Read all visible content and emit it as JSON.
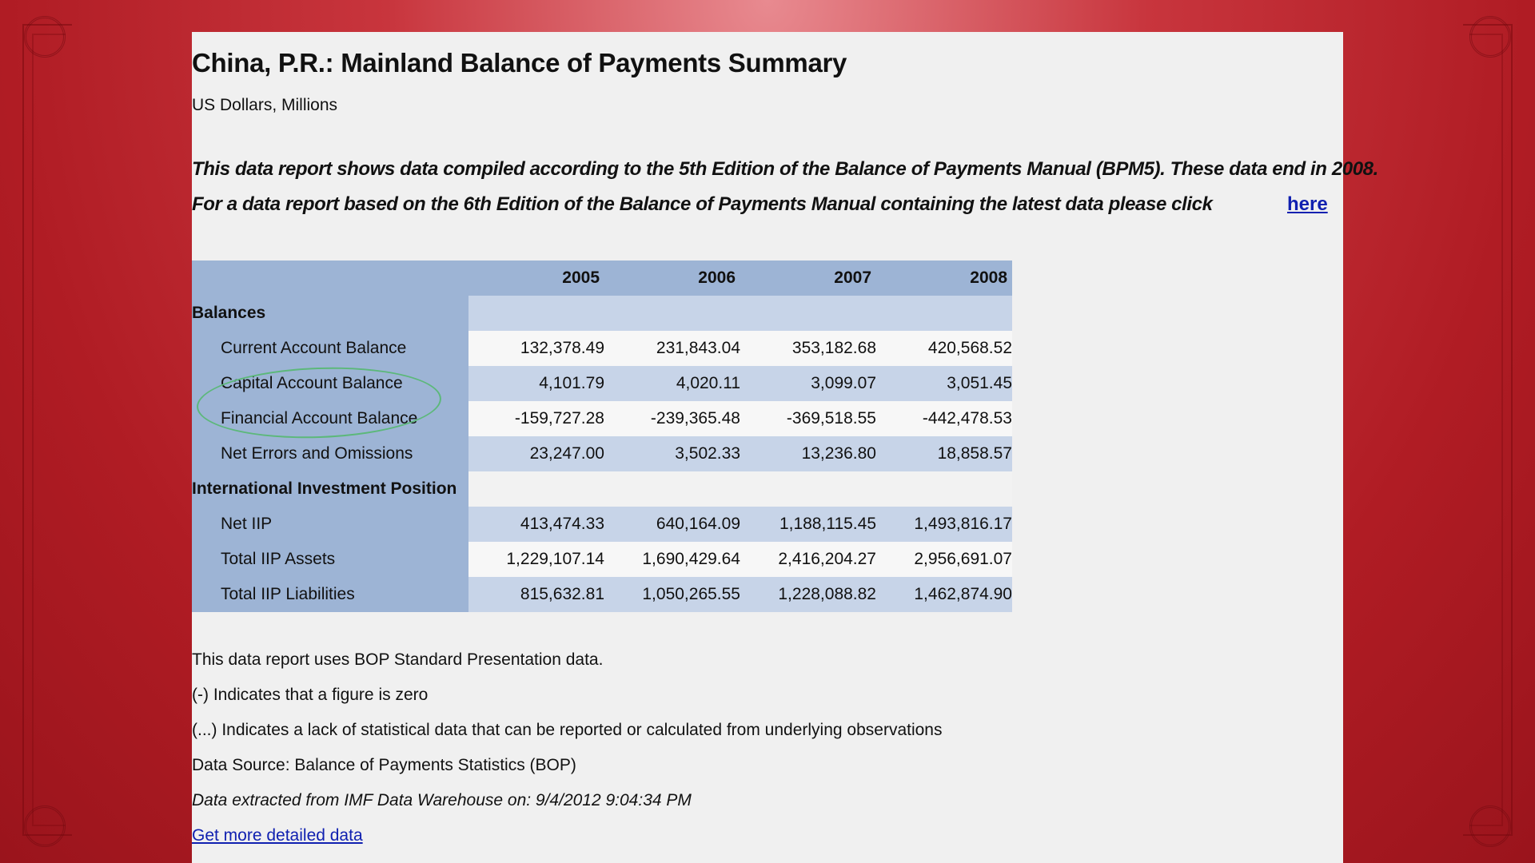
{
  "report": {
    "title": "China, P.R.: Mainland Balance of Payments Summary",
    "units": "US Dollars, Millions",
    "note_line1": "This data report shows data compiled according to the 5th Edition of the Balance of Payments Manual (BPM5). These data end in 2008.",
    "note_line2": "For a data report based on the 6th Edition of the Balance of Payments Manual containing the latest data please click",
    "here_link": "here"
  },
  "table": {
    "years": [
      "2005",
      "2006",
      "2007",
      "2008"
    ],
    "sections": [
      {
        "name": "Balances",
        "rows": [
          {
            "label": "Current Account Balance",
            "values": [
              "132,378.49",
              "231,843.04",
              "353,182.68",
              "420,568.52"
            ]
          },
          {
            "label": "Capital Account Balance",
            "values": [
              "4,101.79",
              "4,020.11",
              "3,099.07",
              "3,051.45"
            ]
          },
          {
            "label": "Financial Account Balance",
            "values": [
              "-159,727.28",
              "-239,365.48",
              "-369,518.55",
              "-442,478.53"
            ]
          },
          {
            "label": "Net Errors and Omissions",
            "values": [
              "23,247.00",
              "3,502.33",
              "13,236.80",
              "18,858.57"
            ]
          }
        ]
      },
      {
        "name": "International Investment Position",
        "rows": [
          {
            "label": "Net IIP",
            "values": [
              "413,474.33",
              "640,164.09",
              "1,188,115.45",
              "1,493,816.17"
            ]
          },
          {
            "label": "Total IIP Assets",
            "values": [
              "1,229,107.14",
              "1,690,429.64",
              "2,416,204.27",
              "2,956,691.07"
            ]
          },
          {
            "label": "Total IIP Liabilities",
            "values": [
              "815,632.81",
              "1,050,265.55",
              "1,228,088.82",
              "1,462,874.90"
            ]
          }
        ]
      }
    ]
  },
  "footer": {
    "line1": "This data report uses BOP Standard Presentation data.",
    "line2": "(-) Indicates that a figure is zero",
    "line3": "(...) Indicates a lack of statistical data that can be reported or calculated from underlying observations",
    "line4": "Data Source: Balance of Payments Statistics (BOP)",
    "line5": "Data extracted from IMF Data Warehouse on: 9/4/2012 9:04:34 PM",
    "detail_link": "Get more detailed data"
  },
  "colors": {
    "header_blue": "#9db4d5",
    "row_blue": "#c7d4e8",
    "link": "#1020b0",
    "annotation": "#5cb87a"
  }
}
